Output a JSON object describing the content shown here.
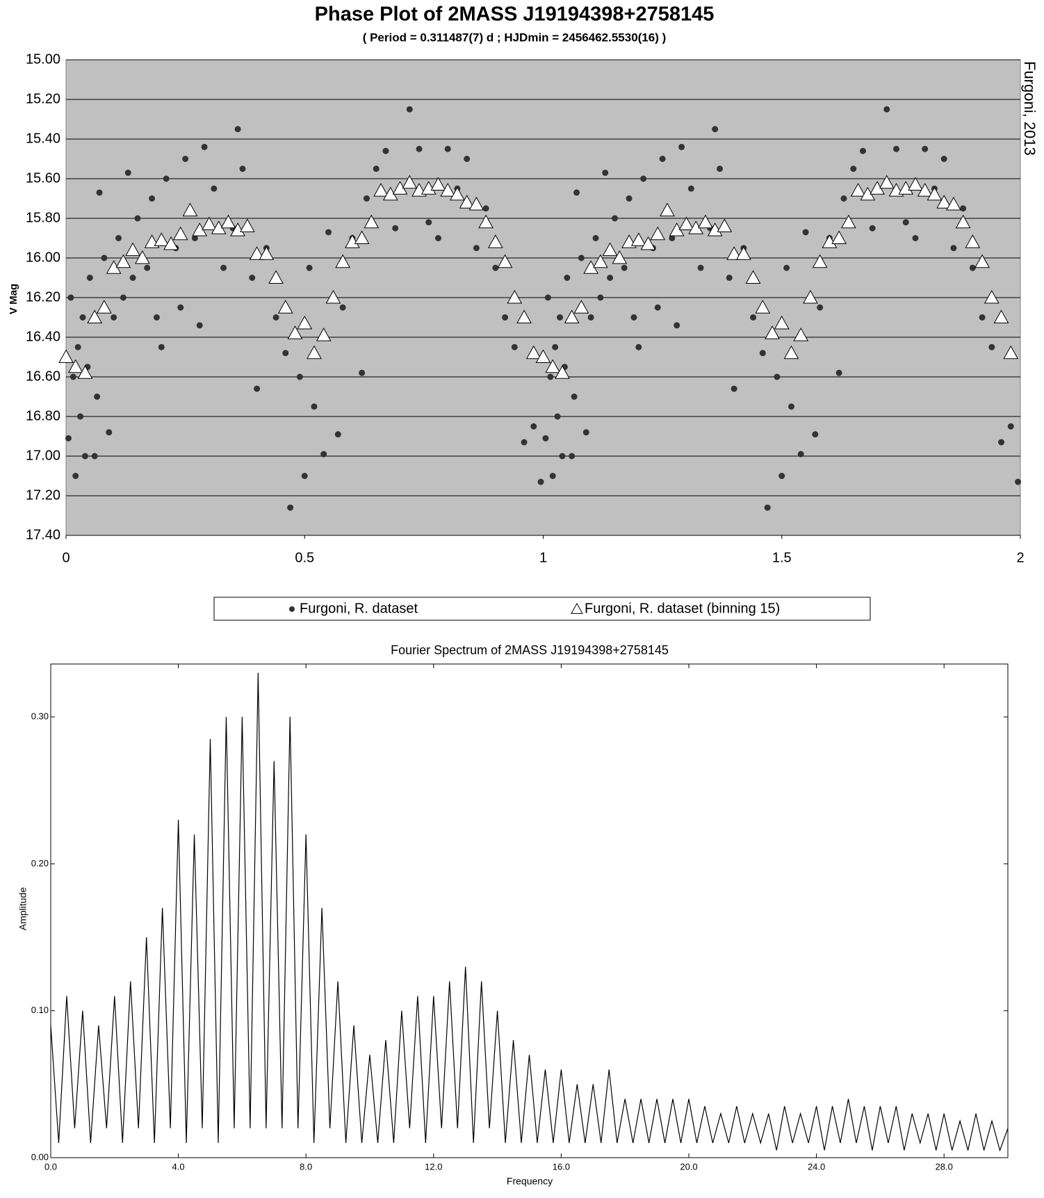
{
  "chart_data": [
    {
      "type": "scatter",
      "title": "Phase Plot of 2MASS J19194398+2758145",
      "subtitle": "( Period = 0.311487(7) d ; HJDmin = 2456462.5530(16) )",
      "y_label": "V Mag",
      "annotation": "Furgoni, 2013",
      "xlim": [
        0,
        2
      ],
      "xticks": [
        0,
        0.5,
        1,
        1.5,
        2
      ],
      "ylim": [
        15,
        17.4
      ],
      "y_inverted": true,
      "yticks": [
        {
          "value": 15,
          "label": "15.00"
        },
        {
          "value": 15.2,
          "label": "15.20"
        },
        {
          "value": 15.4,
          "label": "15.40"
        },
        {
          "value": 15.6,
          "label": "15.60"
        },
        {
          "value": 15.8,
          "label": "15.80"
        },
        {
          "value": 16,
          "label": "16.00"
        },
        {
          "value": 16.2,
          "label": "16.20"
        },
        {
          "value": 16.4,
          "label": "16.40"
        },
        {
          "value": 16.6,
          "label": "16.60"
        },
        {
          "value": 16.8,
          "label": "16.80"
        },
        {
          "value": 17,
          "label": "17.00"
        },
        {
          "value": 17.2,
          "label": "17.20"
        },
        {
          "value": 17.4,
          "label": "17.40"
        }
      ],
      "grid": true,
      "background": "#c0c0c0",
      "legend": "bottom",
      "series": [
        {
          "name": "Furgoni, R. dataset",
          "marker": "dot",
          "color": "#333333",
          "x": [
            0.005,
            0.01,
            0.015,
            0.02,
            0.025,
            0.03,
            0.035,
            0.04,
            0.045,
            0.05,
            0.06,
            0.065,
            0.07,
            0.08,
            0.09,
            0.1,
            0.11,
            0.12,
            0.13,
            0.14,
            0.15,
            0.17,
            0.18,
            0.19,
            0.2,
            0.21,
            0.23,
            0.24,
            0.25,
            0.27,
            0.28,
            0.29,
            0.31,
            0.33,
            0.35,
            0.36,
            0.37,
            0.39,
            0.4,
            0.42,
            0.44,
            0.46,
            0.47,
            0.49,
            0.5,
            0.51,
            0.52,
            0.54,
            0.55,
            0.57,
            0.58,
            0.6,
            0.62,
            0.63,
            0.65,
            0.67,
            0.69,
            0.72,
            0.74,
            0.76,
            0.78,
            0.8,
            0.82,
            0.84,
            0.86,
            0.88,
            0.9,
            0.92,
            0.94,
            0.96,
            0.98,
            0.995,
            1.005,
            1.01,
            1.015,
            1.02,
            1.025,
            1.03,
            1.035,
            1.04,
            1.045,
            1.05,
            1.06,
            1.065,
            1.07,
            1.08,
            1.09,
            1.1,
            1.11,
            1.12,
            1.13,
            1.14,
            1.15,
            1.17,
            1.18,
            1.19,
            1.2,
            1.21,
            1.23,
            1.24,
            1.25,
            1.27,
            1.28,
            1.29,
            1.31,
            1.33,
            1.35,
            1.36,
            1.37,
            1.39,
            1.4,
            1.42,
            1.44,
            1.46,
            1.47,
            1.49,
            1.5,
            1.51,
            1.52,
            1.54,
            1.55,
            1.57,
            1.58,
            1.6,
            1.62,
            1.63,
            1.65,
            1.67,
            1.69,
            1.72,
            1.74,
            1.76,
            1.78,
            1.8,
            1.82,
            1.84,
            1.86,
            1.88,
            1.9,
            1.92,
            1.94,
            1.96,
            1.98,
            1.995
          ],
          "values": [
            16.91,
            16.2,
            16.6,
            17.1,
            16.45,
            16.8,
            16.3,
            17.0,
            16.55,
            16.1,
            17.0,
            16.7,
            15.67,
            16.0,
            16.88,
            16.3,
            15.9,
            16.2,
            15.57,
            16.1,
            15.8,
            16.05,
            15.7,
            16.3,
            16.45,
            15.6,
            15.95,
            16.25,
            15.5,
            15.9,
            16.34,
            15.44,
            15.65,
            16.05,
            15.85,
            15.35,
            15.55,
            16.1,
            16.66,
            15.95,
            16.3,
            16.48,
            17.26,
            16.6,
            17.1,
            16.05,
            16.75,
            16.99,
            15.87,
            16.89,
            16.25,
            15.9,
            16.58,
            15.7,
            15.55,
            15.46,
            15.85,
            15.25,
            15.45,
            15.82,
            15.9,
            15.45,
            15.65,
            15.5,
            15.95,
            15.75,
            16.05,
            16.3,
            16.45,
            16.93,
            16.85,
            17.13,
            16.91,
            16.2,
            16.6,
            17.1,
            16.45,
            16.8,
            16.3,
            17.0,
            16.55,
            16.1,
            17.0,
            16.7,
            15.67,
            16.0,
            16.88,
            16.3,
            15.9,
            16.2,
            15.57,
            16.1,
            15.8,
            16.05,
            15.7,
            16.3,
            16.45,
            15.6,
            15.95,
            16.25,
            15.5,
            15.9,
            16.34,
            15.44,
            15.65,
            16.05,
            15.85,
            15.35,
            15.55,
            16.1,
            16.66,
            15.95,
            16.3,
            16.48,
            17.26,
            16.6,
            17.1,
            16.05,
            16.75,
            16.99,
            15.87,
            16.89,
            16.25,
            15.9,
            16.58,
            15.7,
            15.55,
            15.46,
            15.85,
            15.25,
            15.45,
            15.82,
            15.9,
            15.45,
            15.65,
            15.5,
            15.95,
            15.75,
            16.05,
            16.3,
            16.45,
            16.93,
            16.85,
            17.13
          ]
        },
        {
          "name": "Furgoni, R. dataset (binning 15)",
          "marker": "triangle",
          "color": "#ffffff",
          "x": [
            0,
            0.02,
            0.04,
            0.06,
            0.08,
            0.1,
            0.12,
            0.14,
            0.16,
            0.18,
            0.2,
            0.22,
            0.24,
            0.26,
            0.28,
            0.3,
            0.32,
            0.34,
            0.36,
            0.38,
            0.4,
            0.42,
            0.44,
            0.46,
            0.48,
            0.5,
            0.52,
            0.54,
            0.56,
            0.58,
            0.6,
            0.62,
            0.64,
            0.66,
            0.68,
            0.7,
            0.72,
            0.74,
            0.76,
            0.78,
            0.8,
            0.82,
            0.84,
            0.86,
            0.88,
            0.9,
            0.92,
            0.94,
            0.96,
            0.98,
            1,
            1.02,
            1.04,
            1.06,
            1.08,
            1.1,
            1.12,
            1.14,
            1.16,
            1.18,
            1.2,
            1.22,
            1.24,
            1.26,
            1.28,
            1.3,
            1.32,
            1.34,
            1.36,
            1.38,
            1.4,
            1.42,
            1.44,
            1.46,
            1.48,
            1.5,
            1.52,
            1.54,
            1.56,
            1.58,
            1.6,
            1.62,
            1.64,
            1.66,
            1.68,
            1.7,
            1.72,
            1.74,
            1.76,
            1.78,
            1.8,
            1.82,
            1.84,
            1.86,
            1.88,
            1.9,
            1.92,
            1.94,
            1.96,
            1.98
          ],
          "values": [
            16.5,
            16.55,
            16.58,
            16.3,
            16.25,
            16.05,
            16.02,
            15.96,
            16.0,
            15.92,
            15.91,
            15.93,
            15.88,
            15.76,
            15.86,
            15.83,
            15.85,
            15.82,
            15.86,
            15.84,
            15.98,
            15.98,
            16.1,
            16.25,
            16.38,
            16.33,
            16.48,
            16.39,
            16.2,
            16.02,
            15.92,
            15.9,
            15.82,
            15.66,
            15.68,
            15.65,
            15.62,
            15.66,
            15.65,
            15.63,
            15.66,
            15.68,
            15.72,
            15.73,
            15.82,
            15.92,
            16.02,
            16.2,
            16.3,
            16.48,
            16.5,
            16.55,
            16.58,
            16.3,
            16.25,
            16.05,
            16.02,
            15.96,
            16.0,
            15.92,
            15.91,
            15.93,
            15.88,
            15.76,
            15.86,
            15.83,
            15.85,
            15.82,
            15.86,
            15.84,
            15.98,
            15.98,
            16.1,
            16.25,
            16.38,
            16.33,
            16.48,
            16.39,
            16.2,
            16.02,
            15.92,
            15.9,
            15.82,
            15.66,
            15.68,
            15.65,
            15.62,
            15.66,
            15.65,
            15.63,
            15.66,
            15.68,
            15.72,
            15.73,
            15.82,
            15.92,
            16.02,
            16.2,
            16.3,
            16.48
          ]
        }
      ]
    },
    {
      "type": "line",
      "title": "Fourier Spectrum of 2MASS J19194398+2758145",
      "x_label": "Frequency",
      "y_label": "Amplitude",
      "color": "#000000",
      "xlim": [
        0,
        30
      ],
      "xticks": [
        {
          "value": 0,
          "label": "0.0"
        },
        {
          "value": 4,
          "label": "4.0"
        },
        {
          "value": 8,
          "label": "8.0"
        },
        {
          "value": 12,
          "label": "12.0"
        },
        {
          "value": 16,
          "label": "16.0"
        },
        {
          "value": 20,
          "label": "20.0"
        },
        {
          "value": 24,
          "label": "24.0"
        },
        {
          "value": 28,
          "label": "28.0"
        }
      ],
      "ylim": [
        0,
        0.336
      ],
      "yticks": [
        {
          "value": 0,
          "label": "0.00"
        },
        {
          "value": 0.1,
          "label": "0.10"
        },
        {
          "value": 0.2,
          "label": "0.20"
        },
        {
          "value": 0.3,
          "label": "0.30"
        }
      ],
      "x": [
        0,
        0.25,
        0.5,
        0.75,
        1,
        1.25,
        1.5,
        1.75,
        2,
        2.25,
        2.5,
        2.75,
        3,
        3.25,
        3.5,
        3.75,
        4,
        4.25,
        4.5,
        4.75,
        5,
        5.25,
        5.5,
        5.75,
        6,
        6.25,
        6.5,
        6.75,
        7,
        7.25,
        7.5,
        7.75,
        8,
        8.25,
        8.5,
        8.75,
        9,
        9.25,
        9.5,
        9.75,
        10,
        10.25,
        10.5,
        10.75,
        11,
        11.25,
        11.5,
        11.75,
        12,
        12.25,
        12.5,
        12.75,
        13,
        13.25,
        13.5,
        13.75,
        14,
        14.25,
        14.5,
        14.75,
        15,
        15.25,
        15.5,
        15.75,
        16,
        16.25,
        16.5,
        16.75,
        17,
        17.25,
        17.5,
        17.75,
        18,
        18.25,
        18.5,
        18.75,
        19,
        19.25,
        19.5,
        19.75,
        20,
        20.25,
        20.5,
        20.75,
        21,
        21.25,
        21.5,
        21.75,
        22,
        22.25,
        22.5,
        22.75,
        23,
        23.25,
        23.5,
        23.75,
        24,
        24.25,
        24.5,
        24.75,
        25,
        25.25,
        25.5,
        25.75,
        26,
        26.25,
        26.5,
        26.75,
        27,
        27.25,
        27.5,
        27.75,
        28,
        28.25,
        28.5,
        28.75,
        29,
        29.25,
        29.5,
        29.75,
        30
      ],
      "values": [
        0.09,
        0.01,
        0.11,
        0.02,
        0.1,
        0.01,
        0.09,
        0.02,
        0.11,
        0.01,
        0.12,
        0.02,
        0.15,
        0.01,
        0.17,
        0.02,
        0.23,
        0.01,
        0.22,
        0.02,
        0.285,
        0.01,
        0.3,
        0.02,
        0.3,
        0.02,
        0.33,
        0.02,
        0.27,
        0.02,
        0.3,
        0.02,
        0.22,
        0.01,
        0.17,
        0.02,
        0.12,
        0.01,
        0.09,
        0.01,
        0.07,
        0.01,
        0.08,
        0.01,
        0.1,
        0.02,
        0.11,
        0.01,
        0.11,
        0.02,
        0.12,
        0.02,
        0.13,
        0.01,
        0.12,
        0.02,
        0.1,
        0.01,
        0.08,
        0.01,
        0.07,
        0.01,
        0.06,
        0.01,
        0.06,
        0.01,
        0.05,
        0.01,
        0.05,
        0.01,
        0.06,
        0.01,
        0.04,
        0.01,
        0.04,
        0.01,
        0.04,
        0.01,
        0.04,
        0.01,
        0.04,
        0.01,
        0.035,
        0.01,
        0.03,
        0.01,
        0.035,
        0.01,
        0.03,
        0.01,
        0.03,
        0.005,
        0.035,
        0.01,
        0.03,
        0.01,
        0.035,
        0.005,
        0.035,
        0.01,
        0.04,
        0.01,
        0.035,
        0.005,
        0.035,
        0.01,
        0.035,
        0.005,
        0.03,
        0.01,
        0.03,
        0.005,
        0.03,
        0.005,
        0.025,
        0.005,
        0.03,
        0.005,
        0.025,
        0.005,
        0.02
      ]
    }
  ]
}
